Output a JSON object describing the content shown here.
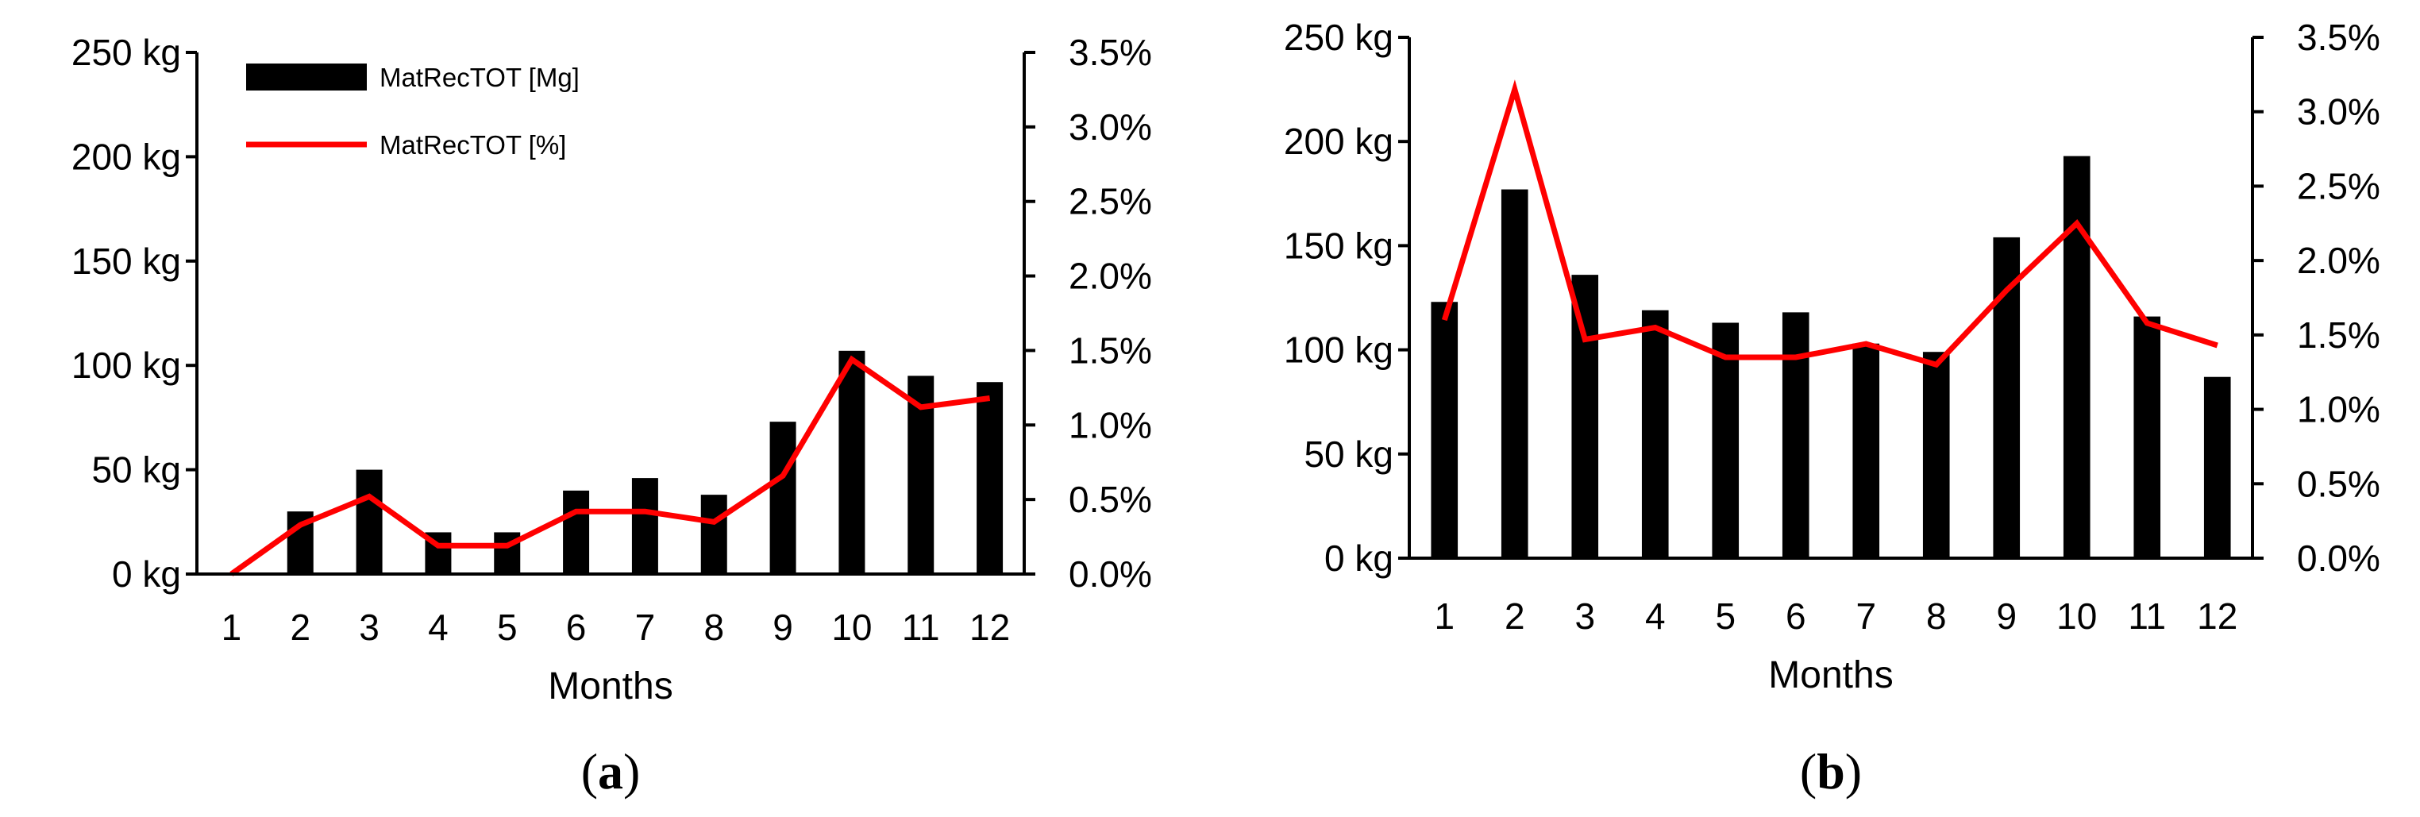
{
  "chart_data": [
    {
      "panel": "a",
      "type": "bar+line",
      "categories": [
        "1",
        "2",
        "3",
        "4",
        "5",
        "6",
        "7",
        "8",
        "9",
        "10",
        "11",
        "12"
      ],
      "series": [
        {
          "name": "MatRecTOT [Mg]",
          "type": "bar",
          "axis": "left",
          "values": [
            0,
            30,
            50,
            20,
            20,
            40,
            46,
            38,
            73,
            107,
            95,
            92
          ],
          "color": "#000000"
        },
        {
          "name": "MatRecTOT [%]",
          "type": "line",
          "axis": "right",
          "values": [
            0.0,
            0.33,
            0.52,
            0.19,
            0.19,
            0.42,
            0.42,
            0.35,
            0.66,
            1.44,
            1.12,
            1.18
          ],
          "color": "#ff0000"
        }
      ],
      "xlabel": "Months",
      "ylim": [
        0,
        250
      ],
      "y_ticks": [
        "0 kg",
        "50 kg",
        "100 kg",
        "150 kg",
        "200 kg",
        "250 kg"
      ],
      "y2lim": [
        0,
        3.5
      ],
      "y2_ticks": [
        "0.0%",
        "0.5%",
        "1.0%",
        "1.5%",
        "2.0%",
        "2.5%",
        "3.0%",
        "3.5%"
      ],
      "legend": "top-left",
      "grid": false,
      "label": {
        "open": "(",
        "letter": "a",
        "close": ")"
      }
    },
    {
      "panel": "b",
      "type": "bar+line",
      "categories": [
        "1",
        "2",
        "3",
        "4",
        "5",
        "6",
        "7",
        "8",
        "9",
        "10",
        "11",
        "12"
      ],
      "series": [
        {
          "type": "bar",
          "axis": "left",
          "values": [
            123,
            177,
            136,
            119,
            113,
            118,
            103,
            99,
            154,
            193,
            116,
            87
          ],
          "color": "#000000"
        },
        {
          "type": "line",
          "axis": "right",
          "values": [
            1.6,
            3.15,
            1.47,
            1.55,
            1.35,
            1.35,
            1.44,
            1.3,
            1.8,
            2.25,
            1.58,
            1.43
          ],
          "color": "#ff0000"
        }
      ],
      "xlabel": "Months",
      "ylim": [
        0,
        250
      ],
      "y_ticks": [
        "0 kg",
        "50 kg",
        "100 kg",
        "150 kg",
        "200 kg",
        "250 kg"
      ],
      "y2lim": [
        0,
        3.5
      ],
      "y2_ticks": [
        "0.0%",
        "0.5%",
        "1.0%",
        "1.5%",
        "2.0%",
        "2.5%",
        "3.0%",
        "3.5%"
      ],
      "grid": false,
      "label": {
        "open": "(",
        "letter": "b",
        "close": ")"
      }
    }
  ]
}
